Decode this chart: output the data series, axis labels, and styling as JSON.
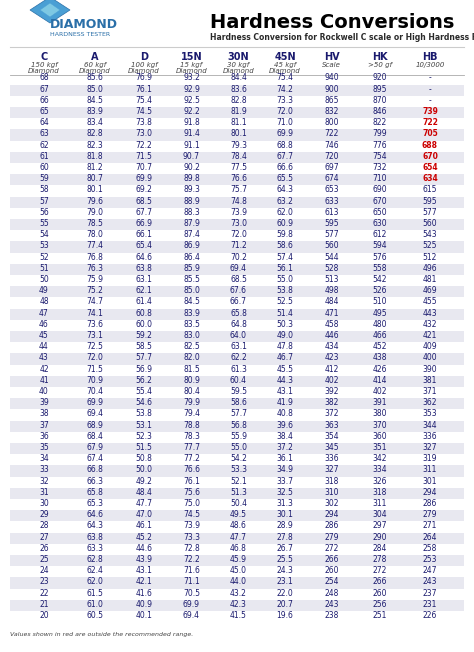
{
  "title": "Hardness Conversions",
  "subtitle": "Hardness Conversion for Rockwell C scale or High Hardness Range",
  "headers": [
    "C",
    "A",
    "D",
    "15N",
    "30N",
    "45N",
    "HV",
    "HK",
    "HB"
  ],
  "subheaders": [
    "150 kgf\nDiamond",
    "60 kgf\nDiamond",
    "100 kgf\nDiamond",
    "15 kgf\nDiamond",
    "30 kgf\nDiamond",
    "45 kgf\nDiamond",
    "Scale",
    ">50 gf",
    "10/3000"
  ],
  "rows": [
    [
      68,
      85.6,
      76.9,
      93.2,
      84.4,
      75.4,
      940,
      920,
      "-"
    ],
    [
      67,
      85.0,
      76.1,
      92.9,
      83.6,
      74.2,
      900,
      895,
      "-"
    ],
    [
      66,
      84.5,
      75.4,
      92.5,
      82.8,
      73.3,
      865,
      870,
      "-"
    ],
    [
      65,
      83.9,
      74.5,
      92.2,
      81.9,
      72.0,
      832,
      846,
      "739"
    ],
    [
      64,
      83.4,
      73.8,
      91.8,
      81.1,
      71.0,
      800,
      822,
      "722"
    ],
    [
      63,
      82.8,
      73.0,
      91.4,
      80.1,
      69.9,
      722,
      799,
      "705"
    ],
    [
      62,
      82.3,
      72.2,
      91.1,
      79.3,
      68.8,
      746,
      776,
      "688"
    ],
    [
      61,
      81.8,
      71.5,
      90.7,
      78.4,
      67.7,
      720,
      754,
      "670"
    ],
    [
      60,
      81.2,
      70.7,
      90.2,
      77.5,
      66.6,
      697,
      732,
      "654"
    ],
    [
      59,
      80.7,
      69.9,
      89.8,
      76.6,
      65.5,
      674,
      710,
      "634"
    ],
    [
      58,
      80.1,
      69.2,
      89.3,
      75.7,
      64.3,
      653,
      690,
      "615"
    ],
    [
      57,
      79.6,
      68.5,
      88.9,
      74.8,
      63.2,
      633,
      670,
      "595"
    ],
    [
      56,
      79.0,
      67.7,
      88.3,
      73.9,
      62.0,
      613,
      650,
      "577"
    ],
    [
      55,
      78.5,
      66.9,
      87.9,
      73.0,
      60.9,
      595,
      630,
      "560"
    ],
    [
      54,
      78.0,
      66.1,
      87.4,
      72.0,
      59.8,
      577,
      612,
      "543"
    ],
    [
      53,
      77.4,
      65.4,
      86.9,
      71.2,
      58.6,
      560,
      594,
      "525"
    ],
    [
      52,
      76.8,
      64.6,
      86.4,
      70.2,
      57.4,
      544,
      576,
      "512"
    ],
    [
      51,
      76.3,
      63.8,
      85.9,
      69.4,
      56.1,
      528,
      558,
      "496"
    ],
    [
      50,
      75.9,
      63.1,
      85.5,
      68.5,
      55.0,
      513,
      542,
      "481"
    ],
    [
      49,
      75.2,
      62.1,
      85.0,
      67.6,
      53.8,
      498,
      526,
      "469"
    ],
    [
      48,
      74.7,
      61.4,
      84.5,
      66.7,
      52.5,
      484,
      510,
      "455"
    ],
    [
      47,
      74.1,
      60.8,
      83.9,
      65.8,
      51.4,
      471,
      495,
      "443"
    ],
    [
      46,
      73.6,
      60.0,
      83.5,
      64.8,
      50.3,
      458,
      480,
      "432"
    ],
    [
      45,
      73.1,
      59.2,
      83.0,
      64.0,
      49.0,
      446,
      466,
      "421"
    ],
    [
      44,
      72.5,
      58.5,
      82.5,
      63.1,
      47.8,
      434,
      452,
      "409"
    ],
    [
      43,
      72.0,
      57.7,
      82.0,
      62.2,
      46.7,
      423,
      438,
      "400"
    ],
    [
      42,
      71.5,
      56.9,
      81.5,
      61.3,
      45.5,
      412,
      426,
      "390"
    ],
    [
      41,
      70.9,
      56.2,
      80.9,
      60.4,
      44.3,
      402,
      414,
      "381"
    ],
    [
      40,
      70.4,
      55.4,
      80.4,
      59.5,
      43.1,
      392,
      402,
      "371"
    ],
    [
      39,
      69.9,
      54.6,
      79.9,
      58.6,
      41.9,
      382,
      391,
      "362"
    ],
    [
      38,
      69.4,
      53.8,
      79.4,
      57.7,
      40.8,
      372,
      380,
      "353"
    ],
    [
      37,
      68.9,
      53.1,
      78.8,
      56.8,
      39.6,
      363,
      370,
      "344"
    ],
    [
      36,
      68.4,
      52.3,
      78.3,
      55.9,
      38.4,
      354,
      360,
      "336"
    ],
    [
      35,
      67.9,
      51.5,
      77.7,
      55.0,
      37.2,
      345,
      351,
      "327"
    ],
    [
      34,
      67.4,
      50.8,
      77.2,
      54.2,
      36.1,
      336,
      342,
      "319"
    ],
    [
      33,
      66.8,
      50.0,
      76.6,
      53.3,
      34.9,
      327,
      334,
      "311"
    ],
    [
      32,
      66.3,
      49.2,
      76.1,
      52.1,
      33.7,
      318,
      326,
      "301"
    ],
    [
      31,
      65.8,
      48.4,
      75.6,
      51.3,
      32.5,
      310,
      318,
      "294"
    ],
    [
      30,
      65.3,
      47.7,
      75.0,
      50.4,
      31.3,
      302,
      311,
      "286"
    ],
    [
      29,
      64.6,
      47.0,
      74.5,
      49.5,
      30.1,
      294,
      304,
      "279"
    ],
    [
      28,
      64.3,
      46.1,
      73.9,
      48.6,
      28.9,
      286,
      297,
      "271"
    ],
    [
      27,
      63.8,
      45.2,
      73.3,
      47.7,
      27.8,
      279,
      290,
      "264"
    ],
    [
      26,
      63.3,
      44.6,
      72.8,
      46.8,
      26.7,
      272,
      284,
      "258"
    ],
    [
      25,
      62.8,
      43.9,
      72.2,
      45.9,
      25.5,
      266,
      278,
      "253"
    ],
    [
      24,
      62.4,
      43.1,
      71.6,
      45.0,
      24.3,
      260,
      272,
      "247"
    ],
    [
      23,
      62.0,
      42.1,
      71.1,
      44.0,
      23.1,
      254,
      266,
      "243"
    ],
    [
      22,
      61.5,
      41.6,
      70.5,
      43.2,
      22.0,
      248,
      260,
      "237"
    ],
    [
      21,
      61.0,
      40.9,
      69.9,
      42.3,
      20.7,
      243,
      256,
      "231"
    ],
    [
      20,
      60.5,
      40.1,
      69.4,
      41.5,
      19.6,
      238,
      251,
      "226"
    ]
  ],
  "red_rows": [
    67,
    65,
    63,
    61,
    59
  ],
  "red_hb": [
    65,
    64,
    63,
    62,
    61,
    60,
    59
  ],
  "gray_rows": [
    67,
    65,
    63,
    61,
    59,
    57,
    55,
    53,
    51,
    49,
    47,
    45,
    43,
    41,
    39,
    37,
    35,
    33,
    31,
    29,
    27,
    25,
    23,
    21
  ],
  "footer": "Values shown in red are outside the recommended range.",
  "logo_text": "DIAMOND",
  "logo_subtext": "HARDNESS TESTER"
}
